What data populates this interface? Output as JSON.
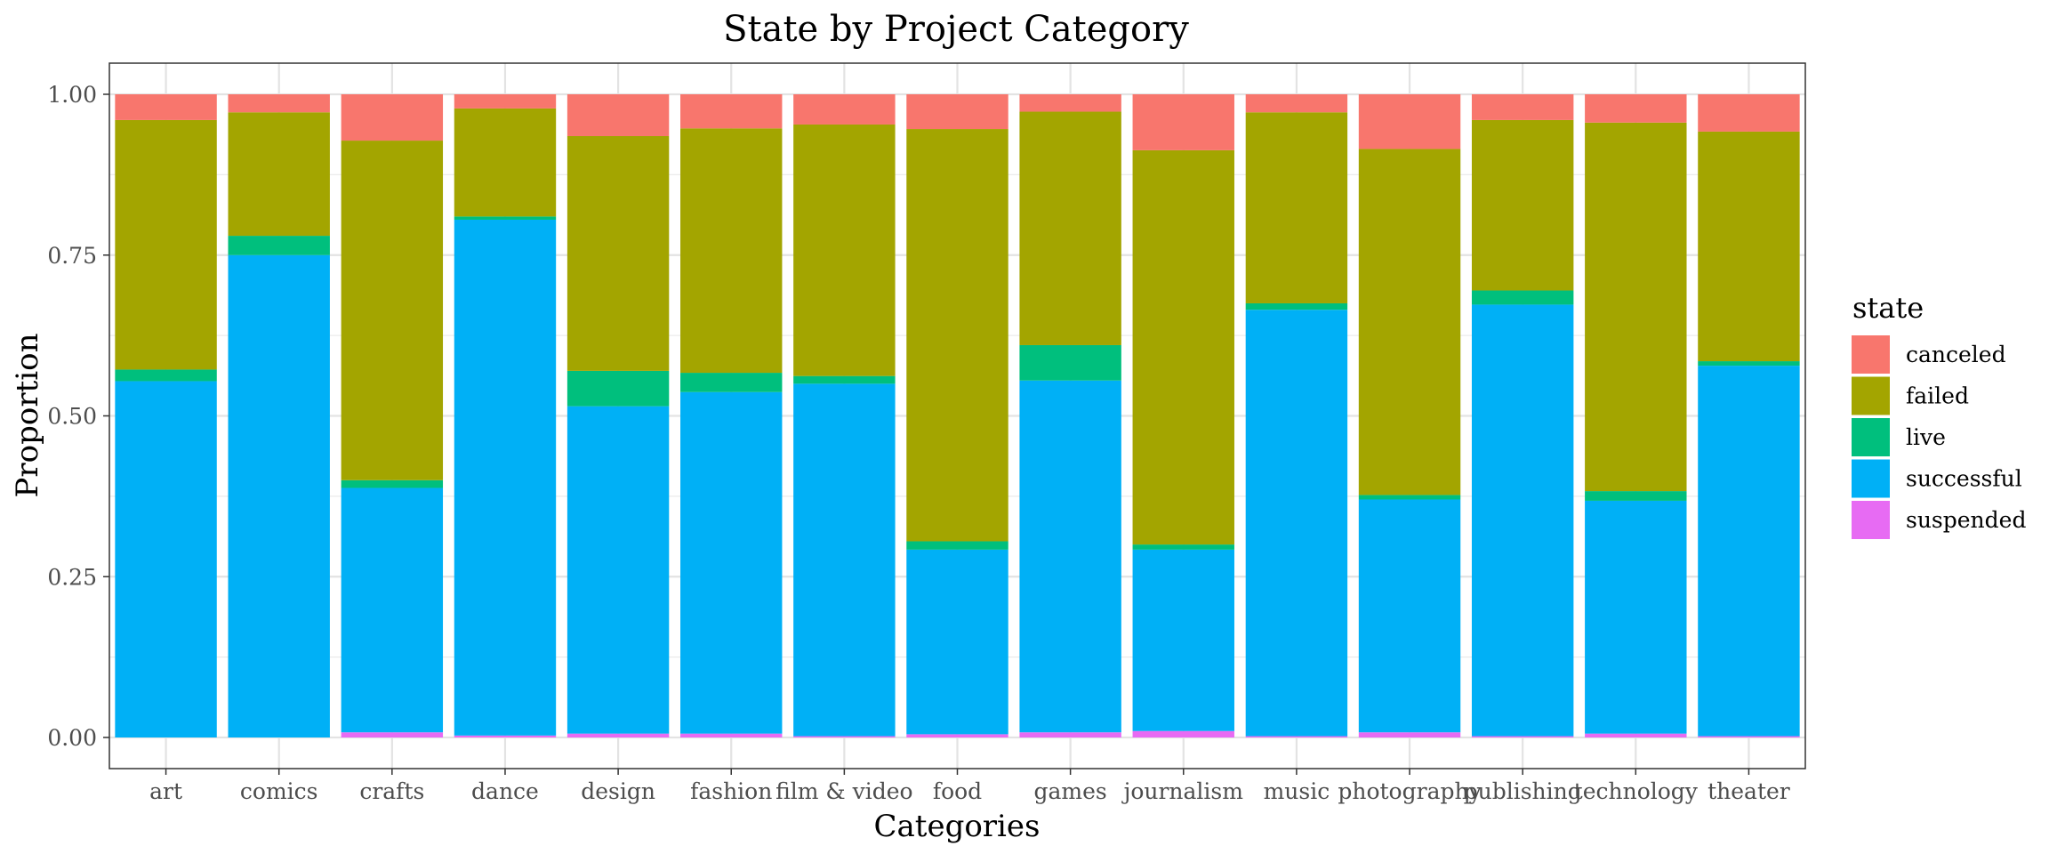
{
  "chart_data": {
    "type": "bar",
    "stacked": "fill",
    "title": "State by Project Category",
    "xlabel": "Categories",
    "ylabel": "Proportion",
    "ylim": [
      0,
      1
    ],
    "yticks": [
      "0.00",
      "0.25",
      "0.50",
      "0.75",
      "1.00"
    ],
    "grid": true,
    "legend_title": "state",
    "legend_position": "right",
    "categories": [
      "art",
      "comics",
      "crafts",
      "dance",
      "design",
      "fashion",
      "film & video",
      "food",
      "games",
      "journalism",
      "music",
      "photography",
      "publishing",
      "technology",
      "theater"
    ],
    "series": [
      {
        "name": "suspended",
        "color": "#E76BF3",
        "values": [
          0.0,
          0.0,
          0.008,
          0.003,
          0.006,
          0.006,
          0.002,
          0.005,
          0.008,
          0.01,
          0.002,
          0.008,
          0.002,
          0.006,
          0.002
        ]
      },
      {
        "name": "successful",
        "color": "#00B0F6",
        "values": [
          0.554,
          0.75,
          0.38,
          0.802,
          0.509,
          0.531,
          0.548,
          0.287,
          0.547,
          0.282,
          0.663,
          0.362,
          0.671,
          0.362,
          0.576
        ]
      },
      {
        "name": "live",
        "color": "#00BF7D",
        "values": [
          0.018,
          0.03,
          0.012,
          0.005,
          0.055,
          0.03,
          0.012,
          0.013,
          0.055,
          0.008,
          0.01,
          0.007,
          0.022,
          0.015,
          0.007
        ]
      },
      {
        "name": "failed",
        "color": "#A3A500",
        "values": [
          0.388,
          0.192,
          0.528,
          0.168,
          0.365,
          0.38,
          0.391,
          0.641,
          0.363,
          0.613,
          0.297,
          0.538,
          0.265,
          0.573,
          0.357
        ]
      },
      {
        "name": "canceled",
        "color": "#F8766D",
        "values": [
          0.04,
          0.028,
          0.072,
          0.022,
          0.065,
          0.053,
          0.047,
          0.054,
          0.027,
          0.087,
          0.028,
          0.085,
          0.04,
          0.044,
          0.058
        ]
      }
    ],
    "legend_order": [
      "canceled",
      "failed",
      "live",
      "successful",
      "suspended"
    ]
  }
}
